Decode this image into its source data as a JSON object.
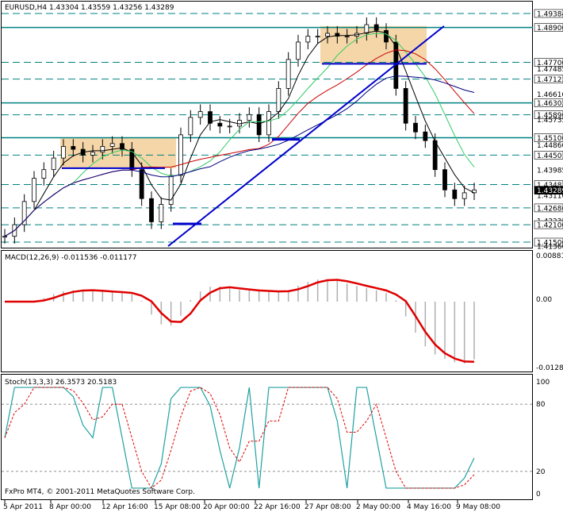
{
  "main": {
    "title": "EURUSD,H4  1.43304 1.43559 1.43256 1.43289",
    "price_labels": [
      {
        "text": "1.49384",
        "boxed": true
      },
      {
        "text": "1.48900",
        "boxed": true
      },
      {
        "text": "1.47700",
        "boxed": true
      },
      {
        "text": "1.47485",
        "boxed": false
      },
      {
        "text": "1.47123",
        "boxed": true
      },
      {
        "text": "1.46610",
        "boxed": false
      },
      {
        "text": "1.46302",
        "boxed": true
      },
      {
        "text": "1.45890",
        "boxed": true
      },
      {
        "text": "1.45735",
        "boxed": false
      },
      {
        "text": "1.45100",
        "boxed": true
      },
      {
        "text": "1.44860",
        "boxed": false
      },
      {
        "text": "1.44501",
        "boxed": true
      },
      {
        "text": "1.43985",
        "boxed": false
      },
      {
        "text": "1.43483",
        "boxed": true
      },
      {
        "text": "1.43289",
        "boxed": true
      },
      {
        "text": "1.43110",
        "boxed": false
      },
      {
        "text": "1.42680",
        "boxed": true
      },
      {
        "text": "1.42235",
        "boxed": false
      },
      {
        "text": "1.42100",
        "boxed": true
      },
      {
        "text": "1.41500",
        "boxed": true
      },
      {
        "text": "1.41360",
        "boxed": false
      }
    ],
    "colors": {
      "candle": "#000000",
      "support": "#008080",
      "box": "#f5d6a8",
      "trend": "#0000cc"
    }
  },
  "macd": {
    "title": "MACD(12,26,9) -0.011536 -0.011177",
    "labels": [
      "0.00881",
      "0.00",
      "-0.01288"
    ]
  },
  "stoch": {
    "title": "Stoch(13,3,3) 26.3573 20.5183",
    "labels": [
      "100",
      "80",
      "20",
      "0"
    ]
  },
  "copyright": "FxPro MT4, © 2001-2011 MetaQuotes Software Corp.",
  "time_axis": [
    "5 Apr 2011",
    "8 Apr 00:00",
    "12 Apr 16:00",
    "15 Apr 08:00",
    "20 Apr 00:00",
    "22 Apr 16:00",
    "27 Apr 08:00",
    "2 May 00:00",
    "4 May 16:00",
    "9 May 08:00"
  ],
  "chart_data": {
    "type": "line",
    "symbol": "EURUSD",
    "timeframe": "H4",
    "ohlc_last": {
      "open": 1.43304,
      "high": 1.43559,
      "low": 1.43256,
      "close": 1.43289
    },
    "series": [
      {
        "values": [
          1.417,
          1.421,
          1.429,
          1.437,
          1.44,
          1.444,
          1.448,
          1.447,
          1.445,
          1.446,
          1.448,
          1.449,
          1.447,
          1.44,
          1.43,
          1.422,
          1.428,
          1.438,
          1.452,
          1.458,
          1.46,
          1.456,
          1.455,
          1.455,
          1.457,
          1.459,
          1.452,
          1.46,
          1.468,
          1.478,
          1.484,
          1.486,
          1.486,
          1.487,
          1.486,
          1.486,
          1.487,
          1.49,
          1.488,
          1.484,
          1.468,
          1.456,
          1.453,
          1.45,
          1.44,
          1.433,
          1.43,
          1.432,
          1.433
        ]
      }
    ],
    "macd": {
      "main": -0.011536,
      "signal": -0.011177
    },
    "stochastic": {
      "k": 26.3573,
      "d": 20.5183
    }
  }
}
